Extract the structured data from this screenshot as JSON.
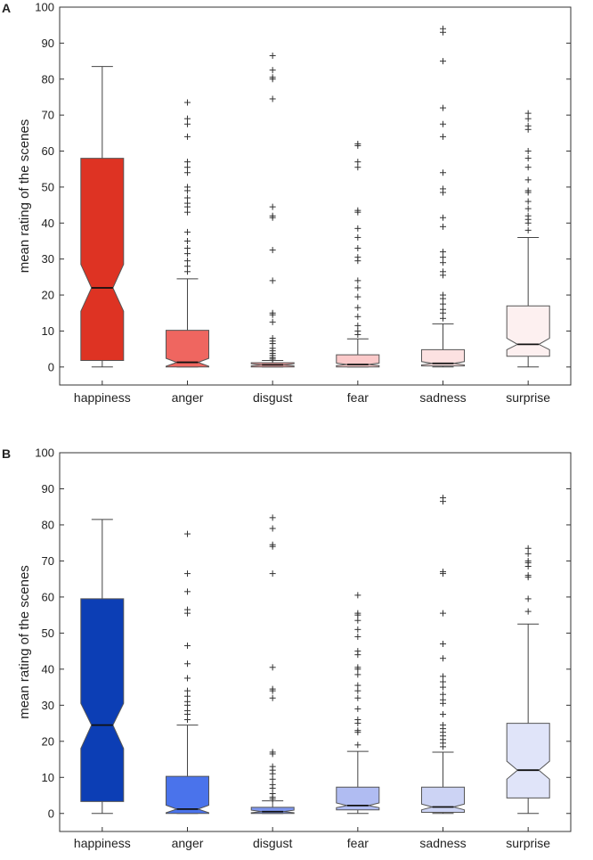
{
  "chart_data": [
    {
      "panel": "A",
      "type": "box",
      "ylabel": "mean rating of the scenes",
      "ylim": [
        -5,
        100
      ],
      "yticks": [
        0,
        10,
        20,
        30,
        40,
        50,
        60,
        70,
        80,
        90,
        100
      ],
      "categories": [
        "happiness",
        "anger",
        "disgust",
        "fear",
        "sadness",
        "surprise"
      ],
      "boxes": [
        {
          "color": "#de3323",
          "min": 0,
          "q1": 1.8,
          "median": 22,
          "q3": 58,
          "whisker_high": 83.5,
          "notch_low": 15.5,
          "notch_high": 28.5,
          "outliers": []
        },
        {
          "color": "#ef6660",
          "min": 0,
          "q1": 0,
          "median": 1.3,
          "q3": 10.2,
          "whisker_high": 24.5,
          "notch_low": 0.2,
          "notch_high": 2.4,
          "outliers": [
            26.5,
            28,
            29.5,
            31.5,
            33,
            35,
            37.5,
            43,
            44.5,
            45.5,
            47,
            49,
            50,
            54,
            55.5,
            57,
            64,
            67.5,
            69,
            73.5
          ]
        },
        {
          "color": "#f7a5a5",
          "min": 0,
          "q1": 0,
          "median": 0.6,
          "q3": 1.2,
          "whisker_high": 1.8,
          "notch_low": 0.3,
          "notch_high": 0.9,
          "outliers": [
            2.2,
            2.6,
            3.2,
            3.8,
            4.5,
            5.2,
            6.5,
            7.2,
            8,
            12.5,
            14.5,
            15,
            24,
            32.5,
            41.5,
            42,
            44.5,
            74.5,
            80,
            80.5,
            82.5,
            86.5
          ]
        },
        {
          "color": "#fbc9c9",
          "min": 0,
          "q1": 0,
          "median": 0.7,
          "q3": 3.4,
          "whisker_high": 7.8,
          "notch_low": 0.4,
          "notch_high": 1.1,
          "outliers": [
            9,
            10,
            11.5,
            14,
            16.5,
            19.5,
            22,
            24,
            29.5,
            30.5,
            33,
            36,
            38.5,
            43,
            43.5,
            55.5,
            57,
            61.5,
            62
          ]
        },
        {
          "color": "#fce1e1",
          "min": 0,
          "q1": 0.3,
          "median": 1.0,
          "q3": 4.8,
          "whisker_high": 12,
          "notch_low": 0.6,
          "notch_high": 1.5,
          "outliers": [
            13.5,
            15,
            16,
            17.5,
            19,
            20,
            25.5,
            26.5,
            29,
            30.5,
            32,
            39,
            41.5,
            48.5,
            49.5,
            54,
            64,
            67.5,
            72,
            85,
            93,
            94
          ]
        },
        {
          "color": "#fdf0f0",
          "min": 0,
          "q1": 3,
          "median": 6.3,
          "q3": 17,
          "whisker_high": 36,
          "notch_low": 4.8,
          "notch_high": 8,
          "outliers": [
            38,
            40,
            41,
            42,
            44,
            46,
            48.5,
            49,
            52,
            55.5,
            58,
            60,
            66,
            67,
            69,
            70.5
          ]
        }
      ]
    },
    {
      "panel": "B",
      "type": "box",
      "ylabel": "mean rating of the scenes",
      "ylim": [
        -5,
        100
      ],
      "yticks": [
        0,
        10,
        20,
        30,
        40,
        50,
        60,
        70,
        80,
        90,
        100
      ],
      "categories": [
        "happiness",
        "anger",
        "disgust",
        "fear",
        "sadness",
        "surprise"
      ],
      "boxes": [
        {
          "color": "#0c3eb5",
          "min": 0,
          "q1": 3.3,
          "median": 24.5,
          "q3": 59.5,
          "whisker_high": 81.5,
          "notch_low": 18,
          "notch_high": 30.5,
          "outliers": []
        },
        {
          "color": "#4a73eb",
          "min": 0,
          "q1": 0,
          "median": 1.2,
          "q3": 10.3,
          "whisker_high": 24.5,
          "notch_low": 0.2,
          "notch_high": 2.3,
          "outliers": [
            26,
            27.5,
            28.5,
            30,
            31,
            32.5,
            34,
            37.5,
            41.5,
            46.5,
            55.5,
            56.5,
            61.5,
            66.5,
            77.5
          ]
        },
        {
          "color": "#7e96ee",
          "min": 0,
          "q1": 0,
          "median": 0.5,
          "q3": 1.7,
          "whisker_high": 3.5,
          "notch_low": 0.2,
          "notch_high": 0.9,
          "outliers": [
            4,
            4.5,
            5.5,
            7,
            8,
            9.5,
            11,
            12,
            13,
            16.5,
            17,
            32,
            34,
            34.5,
            40.5,
            66.5,
            74,
            74.5,
            79,
            82
          ]
        },
        {
          "color": "#b0bcf2",
          "min": 0,
          "q1": 1,
          "median": 2.2,
          "q3": 7.3,
          "whisker_high": 17.2,
          "notch_low": 1.6,
          "notch_high": 2.9,
          "outliers": [
            19,
            22.5,
            23,
            25,
            26,
            29,
            32,
            34,
            35.5,
            38.5,
            40,
            40.5,
            44,
            45,
            49,
            51,
            53.5,
            55,
            55.5,
            60.5
          ]
        },
        {
          "color": "#ccd3f4",
          "min": 0,
          "q1": 0.3,
          "median": 1.8,
          "q3": 7.3,
          "whisker_high": 17,
          "notch_low": 1.0,
          "notch_high": 2.6,
          "outliers": [
            18.5,
            19.5,
            20.5,
            21.5,
            22.5,
            23.5,
            24.5,
            27.5,
            30.5,
            31.5,
            33,
            35,
            36.5,
            38,
            43,
            47,
            55.5,
            66.5,
            67,
            86.5,
            87.5
          ]
        },
        {
          "color": "#e0e4f9",
          "min": 0,
          "q1": 4.3,
          "median": 12,
          "q3": 25,
          "whisker_high": 52.5,
          "notch_low": 9.5,
          "notch_high": 14.5,
          "outliers": [
            56,
            59.5,
            65.5,
            66,
            68.5,
            69.5,
            70,
            72,
            73.5
          ]
        }
      ]
    }
  ]
}
